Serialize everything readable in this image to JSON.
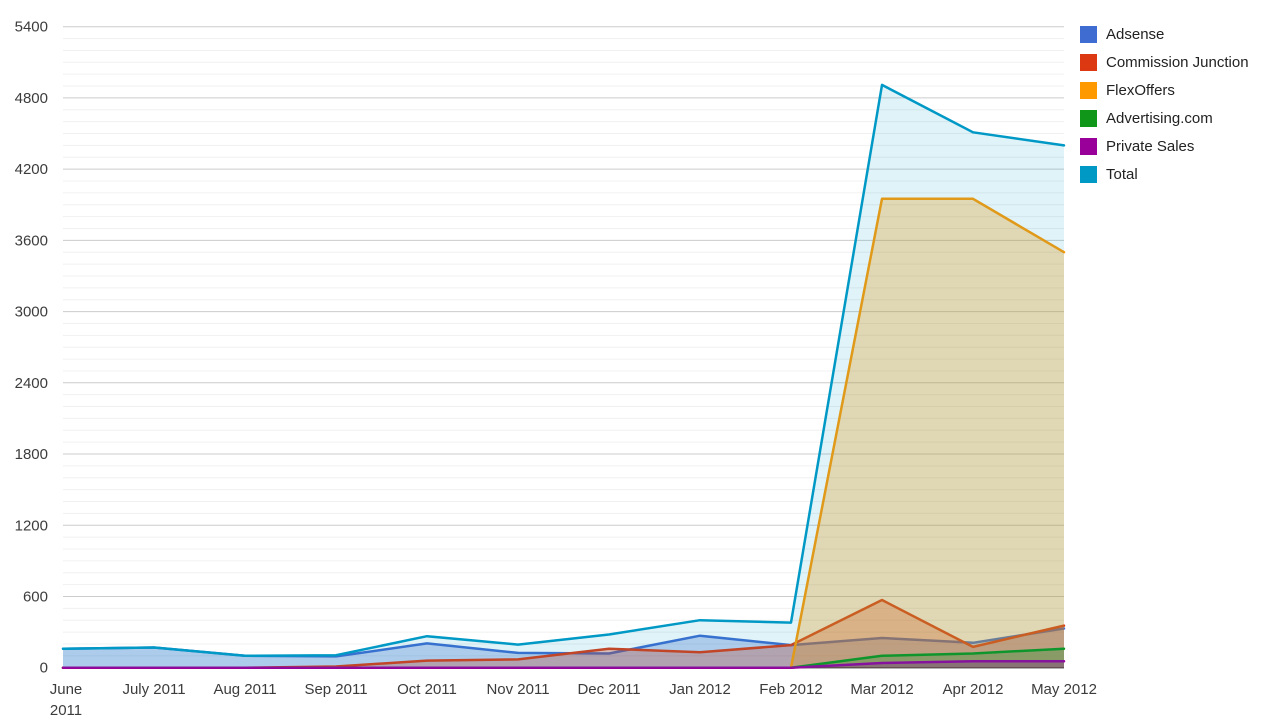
{
  "chart_data": {
    "type": "area",
    "title": "",
    "xlabel": "",
    "ylabel": "",
    "categories": [
      "June 2011",
      "July 2011",
      "Aug 2011",
      "Sep 2011",
      "Oct 2011",
      "Nov 2011",
      "Dec 2011",
      "Jan 2012",
      "Feb 2012",
      "Mar 2012",
      "Apr 2012",
      "May 2012"
    ],
    "series": [
      {
        "name": "Adsense",
        "color": "#3F6CD1",
        "fill_opacity": 0.3,
        "values": [
          160,
          170,
          100,
          95,
          205,
          125,
          120,
          270,
          190,
          250,
          210,
          330
        ]
      },
      {
        "name": "Commission Junction",
        "color": "#DC3912",
        "fill_opacity": 0.3,
        "values": [
          0,
          0,
          0,
          10,
          60,
          70,
          160,
          130,
          190,
          570,
          175,
          355
        ]
      },
      {
        "name": "FlexOffers",
        "color": "#FF9900",
        "fill_opacity": 0.3,
        "values": [
          0,
          0,
          0,
          0,
          0,
          0,
          0,
          0,
          0,
          3950,
          3950,
          3500
        ]
      },
      {
        "name": "Advertising.com",
        "color": "#109618",
        "fill_opacity": 0.3,
        "values": [
          0,
          0,
          0,
          0,
          0,
          0,
          0,
          0,
          0,
          100,
          120,
          160
        ]
      },
      {
        "name": "Private Sales",
        "color": "#990099",
        "fill_opacity": 0.3,
        "values": [
          0,
          0,
          0,
          0,
          0,
          0,
          0,
          0,
          0,
          40,
          55,
          55
        ]
      },
      {
        "name": "Total",
        "color": "#0099C6",
        "fill_opacity": 0.12,
        "values": [
          160,
          170,
          100,
          105,
          265,
          195,
          280,
          400,
          380,
          4910,
          4510,
          4400
        ]
      }
    ],
    "y_axis": {
      "min": 0,
      "max": 5400,
      "major_step": 600,
      "minor_step": 100,
      "tick_labels": [
        "0",
        "600",
        "1200",
        "1800",
        "2400",
        "3000",
        "3600",
        "4200",
        "4800",
        "5400"
      ]
    },
    "legend_position": "right",
    "grid": true
  },
  "colors": {
    "background": "#ffffff",
    "major_grid": "#cccccc",
    "minor_grid": "#f0f0f0",
    "baseline": "#333333",
    "axis_text": "#3c3c3c",
    "legend_text": "#222222"
  }
}
